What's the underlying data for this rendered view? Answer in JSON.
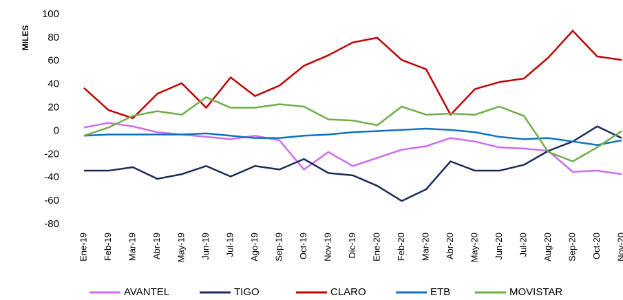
{
  "chart_data": {
    "type": "line",
    "y_label": "MILES",
    "categories": [
      "Ene-19",
      "Feb-19",
      "Mar-19",
      "Abr-19",
      "May-19",
      "Jun-19",
      "Jul-19",
      "Ago-19",
      "Sep-19",
      "Oct-19",
      "Nov-19",
      "Dic-19",
      "Ene-20",
      "Feb-20",
      "Mar-20",
      "Abr-20",
      "May-20",
      "Jun-20",
      "Jul-20",
      "Aug-20",
      "Sep-20",
      "Oct-20",
      "Nov-20"
    ],
    "series": [
      {
        "name": "AVANTEL",
        "color": "#cc6cf0",
        "values": [
          3,
          7,
          4,
          -1,
          -3,
          -5,
          -7,
          -4,
          -8,
          -33,
          -18,
          -30,
          -23,
          -16,
          -13,
          -6,
          -9,
          -14,
          -15,
          -17,
          -35,
          -34,
          -37
        ]
      },
      {
        "name": "TIGO",
        "color": "#1b2a5a",
        "values": [
          -34,
          -34,
          -31,
          -41,
          -37,
          -30,
          -39,
          -30,
          -33,
          -24,
          -36,
          -38,
          -47,
          -60,
          -50,
          -26,
          -34,
          -34,
          -29,
          -17,
          -9,
          4,
          -6
        ]
      },
      {
        "name": "CLARO",
        "color": "#c00000",
        "values": [
          37,
          18,
          11,
          32,
          41,
          20,
          46,
          30,
          39,
          56,
          65,
          76,
          80,
          61,
          53,
          14,
          36,
          42,
          45,
          63,
          86,
          64,
          61
        ]
      },
      {
        "name": "ETB",
        "color": "#0f71c0",
        "values": [
          -4,
          -3,
          -3,
          -3,
          -3,
          -2,
          -4,
          -6,
          -6,
          -4,
          -3,
          -1,
          0,
          1,
          2,
          1,
          -1,
          -5,
          -7,
          -6,
          -9,
          -12,
          -8
        ]
      },
      {
        "name": "MOVISTAR",
        "color": "#6fad47",
        "values": [
          -4,
          3,
          13,
          17,
          14,
          29,
          20,
          20,
          23,
          21,
          10,
          9,
          5,
          21,
          14,
          15,
          14,
          21,
          13,
          -18,
          -26,
          -14,
          0
        ]
      }
    ],
    "ylim": [
      -80,
      100
    ],
    "yticks": [
      -80,
      -60,
      -40,
      -20,
      0,
      20,
      40,
      60,
      80,
      100
    ],
    "legend": "bottom"
  }
}
